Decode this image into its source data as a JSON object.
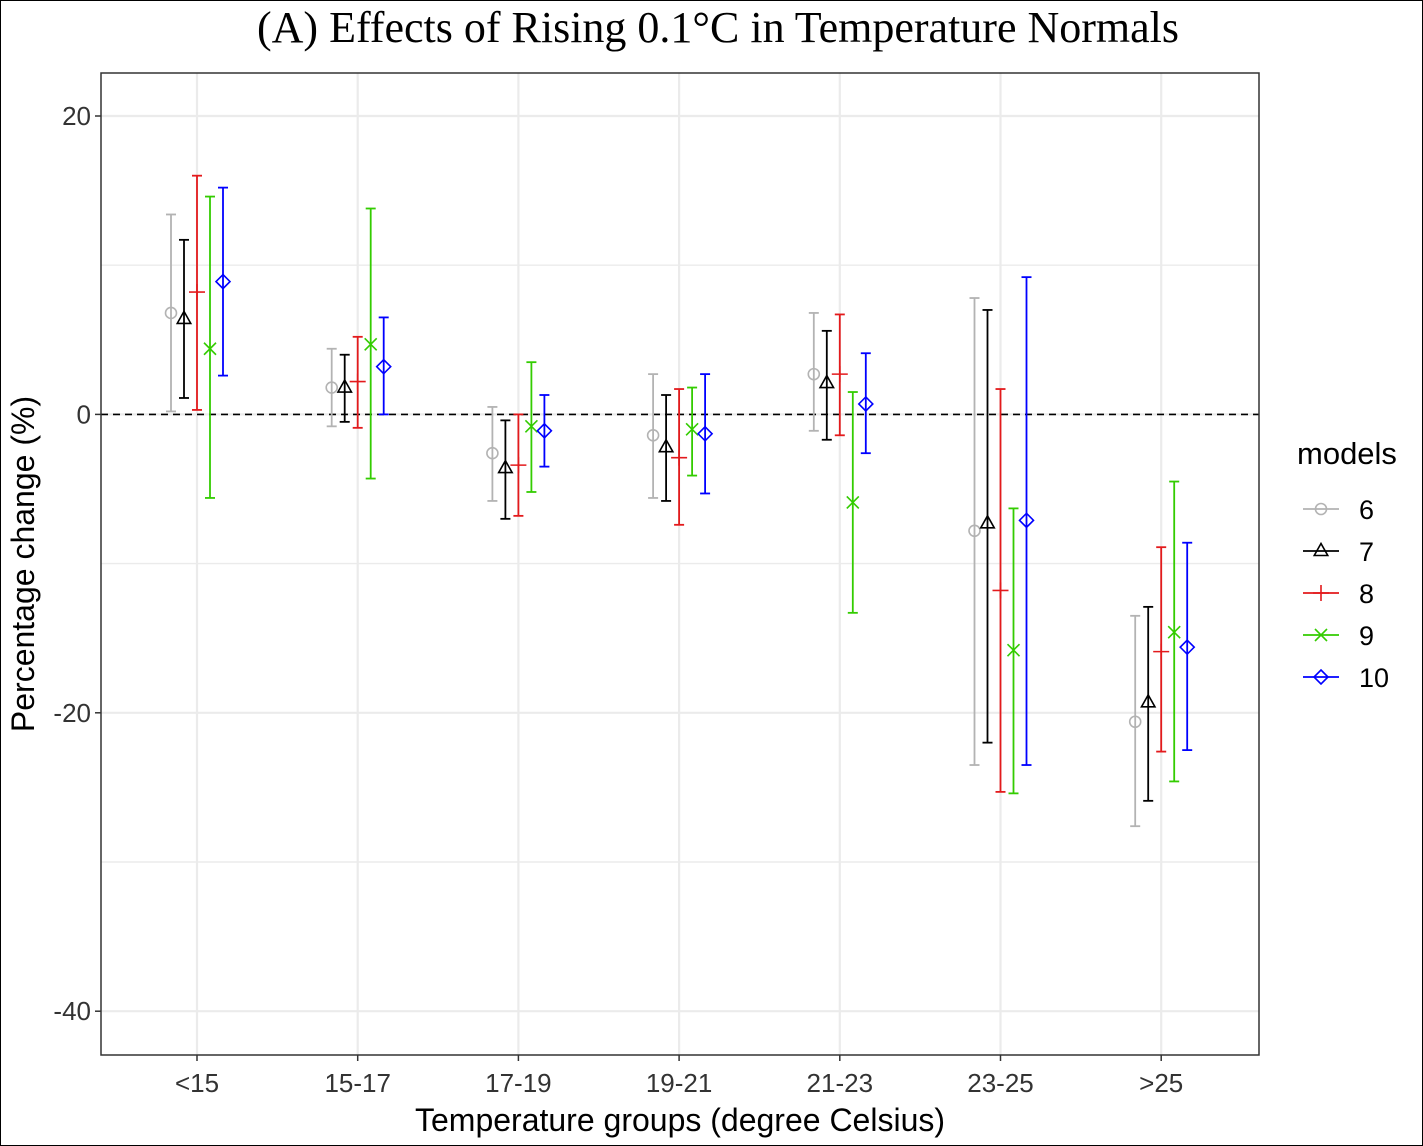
{
  "chart_data": {
    "type": "errorbar",
    "title": "(A) Effects of Rising 0.1°C in Temperature Normals",
    "xlabel": "Temperature groups (degree Celsius)",
    "ylabel": "Percentage change (%)",
    "categories": [
      "<15",
      "15-17",
      "17-19",
      "19-21",
      "21-23",
      "23-25",
      ">25"
    ],
    "ylim": [
      -43,
      23
    ],
    "yticks": [
      20,
      0,
      -20,
      -40
    ],
    "yticklabels": [
      "20",
      "0",
      "-20",
      "-40"
    ],
    "reference_line": 0,
    "grid": true,
    "legend": {
      "title": "models",
      "position": "right"
    },
    "series": [
      {
        "name": "6",
        "color": "#b3b3b3",
        "shape": "circle",
        "estimate": [
          6.8,
          1.8,
          -2.6,
          -1.4,
          2.7,
          -7.8,
          -20.6
        ],
        "lower": [
          0.2,
          -0.8,
          -5.8,
          -5.6,
          -1.1,
          -23.5,
          -27.6
        ],
        "upper": [
          13.4,
          4.4,
          0.5,
          2.7,
          6.8,
          7.8,
          -13.5
        ]
      },
      {
        "name": "7",
        "color": "#000000",
        "shape": "triangle",
        "estimate": [
          6.4,
          1.8,
          -3.6,
          -2.2,
          2.1,
          -7.3,
          -19.3
        ],
        "lower": [
          1.1,
          -0.5,
          -7.0,
          -5.8,
          -1.7,
          -22.0,
          -25.9
        ],
        "upper": [
          11.7,
          4.0,
          -0.4,
          1.3,
          5.6,
          7.0,
          -12.9
        ]
      },
      {
        "name": "8",
        "color": "#e31a1c",
        "shape": "plus",
        "estimate": [
          8.2,
          2.2,
          -3.4,
          -2.9,
          2.7,
          -11.8,
          -15.9
        ],
        "lower": [
          0.3,
          -0.9,
          -6.8,
          -7.4,
          -1.4,
          -25.3,
          -22.6
        ],
        "upper": [
          16.0,
          5.2,
          0.0,
          1.7,
          6.7,
          1.7,
          -8.9
        ]
      },
      {
        "name": "9",
        "color": "#33cc00",
        "shape": "cross",
        "estimate": [
          4.4,
          4.7,
          -0.8,
          -1.0,
          -5.9,
          -15.8,
          -14.6
        ],
        "lower": [
          -5.6,
          -4.3,
          -5.2,
          -4.1,
          -13.3,
          -25.4,
          -24.6
        ],
        "upper": [
          14.6,
          13.8,
          3.5,
          1.8,
          1.5,
          -6.3,
          -4.5
        ]
      },
      {
        "name": "10",
        "color": "#0000ff",
        "shape": "diamond",
        "estimate": [
          8.9,
          3.2,
          -1.1,
          -1.3,
          0.7,
          -7.1,
          -15.6
        ],
        "lower": [
          2.6,
          0.0,
          -3.5,
          -5.3,
          -2.6,
          -23.5,
          -22.5
        ],
        "upper": [
          15.2,
          6.5,
          1.3,
          2.7,
          4.1,
          9.2,
          -8.6
        ]
      }
    ]
  }
}
